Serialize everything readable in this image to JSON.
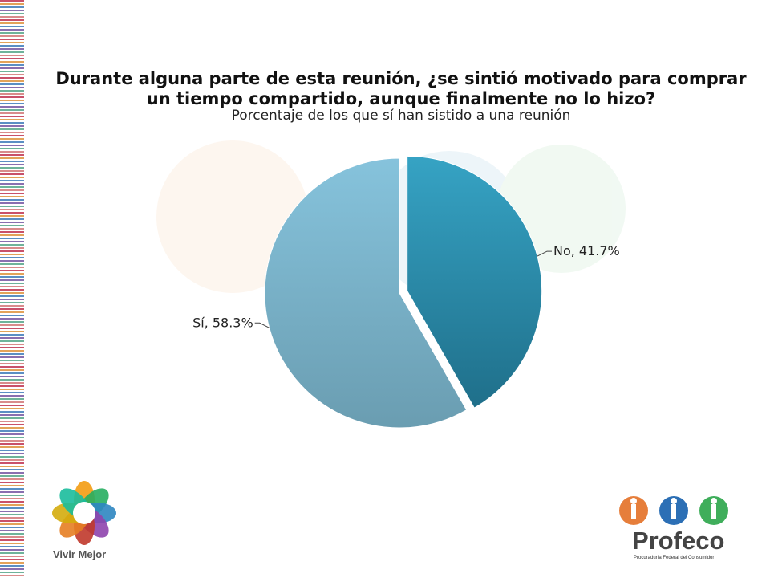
{
  "chart_data": {
    "type": "pie",
    "title": "Durante alguna parte de esta reunión, ¿se sintió motivado para comprar un tiempo compartido, aunque finalmente no lo hizo?",
    "subtitle": "Porcentaje de los que sí han sistido a una reunión",
    "slices": [
      {
        "label": "No",
        "value": 41.7,
        "display": "No, 41.7%",
        "color": "#2e8fac",
        "exploded": true
      },
      {
        "label": "Sí",
        "value": 58.3,
        "display": "Sí, 58.3%",
        "color": "#7fb6cf",
        "exploded": false
      }
    ]
  },
  "logos": {
    "left_text": "Vivir Mejor",
    "right_text": "Profeco",
    "right_subtext": "Procuraduría Federal del Consumidor"
  }
}
